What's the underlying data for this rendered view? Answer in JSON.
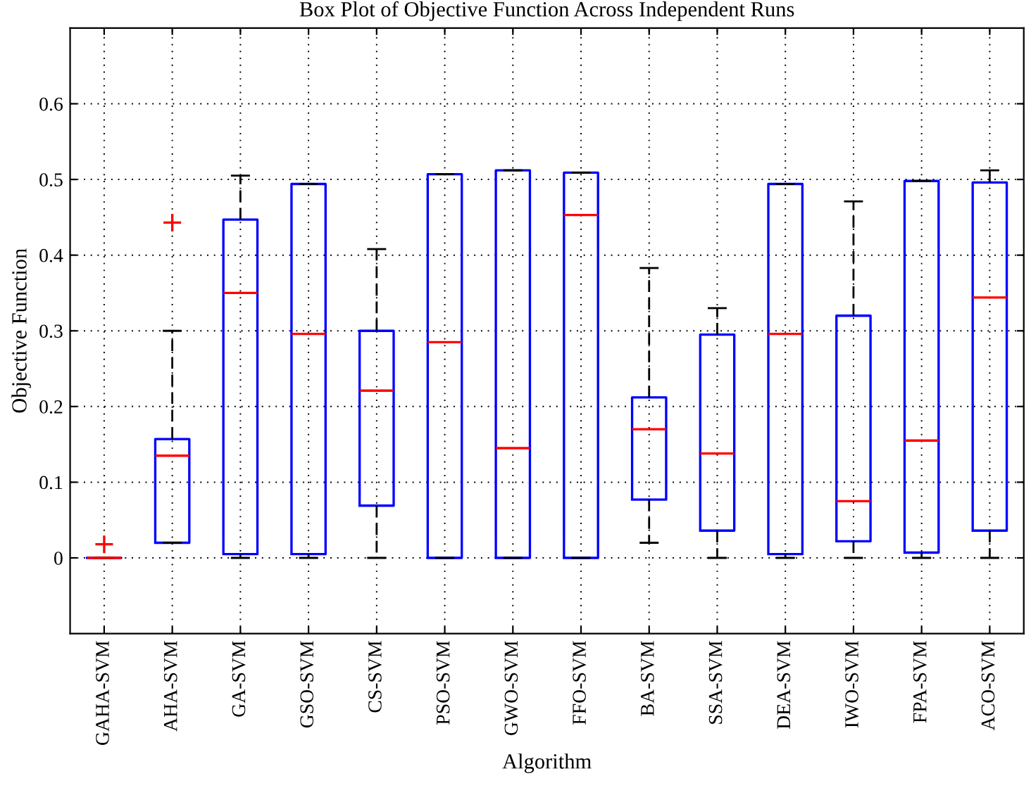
{
  "chart_data": {
    "type": "box",
    "title": "Box Plot of Objective Function Across Independent Runs",
    "xlabel": "Algorithm",
    "ylabel": "Objective Function",
    "categories": [
      "GAHA-SVM",
      "AHA-SVM",
      "GA-SVM",
      "GSO-SVM",
      "CS-SVM",
      "PSO-SVM",
      "GWO-SVM",
      "FFO-SVM",
      "BA-SVM",
      "SSA-SVM",
      "DEA-SVM",
      "IWO-SVM",
      "FPA-SVM",
      "ACO-SVM"
    ],
    "series": [
      {
        "color": "#0000ff",
        "boxes": [
          {
            "low": 0,
            "q1": 0,
            "median": 0,
            "q3": 0,
            "high": 0,
            "outliers": [
              0.018
            ]
          },
          {
            "low": 0.02,
            "q1": 0.02,
            "median": 0.135,
            "q3": 0.157,
            "high": 0.3,
            "outliers": [
              0.443
            ]
          },
          {
            "low": 0,
            "q1": 0.005,
            "median": 0.35,
            "q3": 0.447,
            "high": 0.505
          },
          {
            "low": 0,
            "q1": 0.005,
            "median": 0.296,
            "q3": 0.494,
            "high": 0.494
          },
          {
            "low": 0,
            "q1": 0.069,
            "median": 0.221,
            "q3": 0.3,
            "high": 0.408
          },
          {
            "low": 0,
            "q1": 0,
            "median": 0.285,
            "q3": 0.507,
            "high": 0.507
          },
          {
            "low": 0,
            "q1": 0,
            "median": 0.145,
            "q3": 0.512,
            "high": 0.512
          },
          {
            "low": 0,
            "q1": 0,
            "median": 0.453,
            "q3": 0.509,
            "high": 0.509
          },
          {
            "low": 0.02,
            "q1": 0.077,
            "median": 0.17,
            "q3": 0.212,
            "high": 0.383
          },
          {
            "low": 0,
            "q1": 0.036,
            "median": 0.138,
            "q3": 0.295,
            "high": 0.33
          },
          {
            "low": 0,
            "q1": 0.005,
            "median": 0.296,
            "q3": 0.494,
            "high": 0.494
          },
          {
            "low": 0,
            "q1": 0.022,
            "median": 0.075,
            "q3": 0.32,
            "high": 0.471
          },
          {
            "low": 0,
            "q1": 0.007,
            "median": 0.155,
            "q3": 0.498,
            "high": 0.498
          },
          {
            "low": 0,
            "q1": 0.036,
            "median": 0.344,
            "q3": 0.496,
            "high": 0.512
          }
        ]
      }
    ],
    "ylim": [
      -0.1,
      0.7
    ],
    "yticks": [
      0,
      0.1,
      0.2,
      0.3,
      0.4,
      0.5,
      0.6
    ],
    "grid": true
  }
}
